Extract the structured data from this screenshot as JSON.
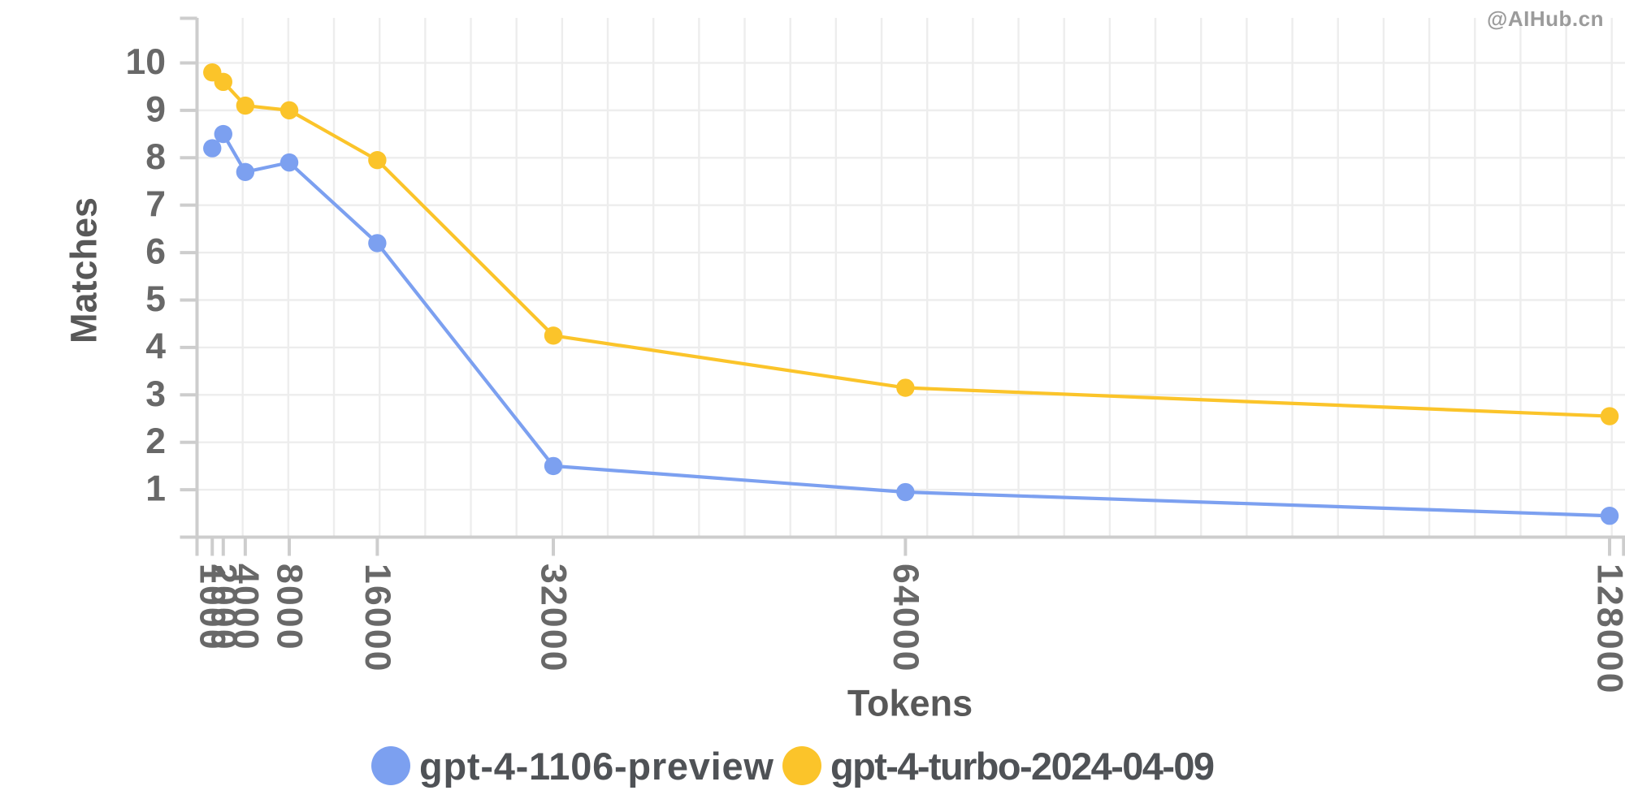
{
  "watermark": {
    "text": "@AIHub.cn",
    "color": "#9b9b9b"
  },
  "chart_data": {
    "type": "line",
    "title": "",
    "xlabel": "Tokens",
    "ylabel": "Matches",
    "x": [
      1000,
      2000,
      4000,
      8000,
      16000,
      32000,
      64000,
      128000
    ],
    "x_tick_labels": [
      "1000",
      "2000",
      "4000",
      "8000",
      "16000",
      "32000",
      "64000",
      "128000"
    ],
    "y_ticks": [
      1,
      2,
      3,
      4,
      5,
      6,
      7,
      8,
      9,
      10
    ],
    "xlim": [
      -384,
      129400
    ],
    "ylim": [
      0,
      10.95
    ],
    "grid": true,
    "legend_position": "bottom",
    "series": [
      {
        "name": "gpt-4-1106-preview",
        "color": "#7CA0F0",
        "values": [
          8.2,
          8.5,
          7.7,
          7.9,
          6.2,
          1.5,
          0.95,
          0.45
        ]
      },
      {
        "name": "gpt-4-turbo-2024-04-09",
        "color": "#FBC42A",
        "values": [
          9.8,
          9.6,
          9.1,
          9.0,
          7.95,
          4.25,
          3.15,
          2.55
        ]
      }
    ]
  },
  "style": {
    "background": "#ffffff",
    "axis_line_color": "#cdcdcd",
    "grid_color": "#ededed",
    "tick_label_color": "#686868",
    "axis_title_color": "#585858",
    "legend_text_color": "#4f5256"
  }
}
